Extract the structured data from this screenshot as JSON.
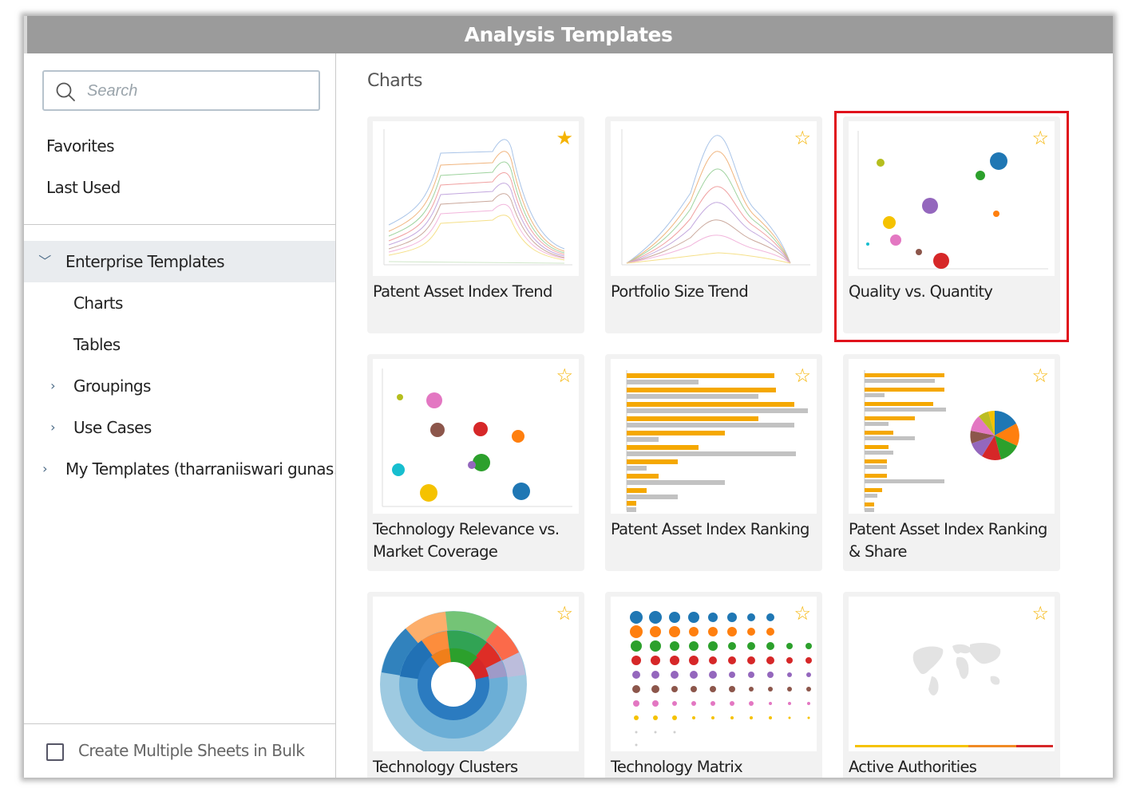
{
  "window": {
    "title": "Analysis Templates"
  },
  "sidebar": {
    "search": {
      "placeholder": "Search",
      "icon": "search-icon"
    },
    "links": [
      {
        "label": "Favorites"
      },
      {
        "label": "Last Used"
      }
    ],
    "tree": [
      {
        "label": "Enterprise Templates",
        "expanded": true,
        "selected": true
      },
      {
        "label": "Charts"
      },
      {
        "label": "Tables"
      },
      {
        "label": "Groupings",
        "expanded": false
      },
      {
        "label": "Use Cases",
        "expanded": false
      },
      {
        "label": "My Templates (tharraniiswari gunas...",
        "expanded": false
      }
    ],
    "bulk": {
      "label": "Create Multiple Sheets in Bulk",
      "checked": false
    }
  },
  "main": {
    "section_title": "Charts",
    "cards": [
      {
        "name": "Patent Asset Index Trend",
        "favorite": true
      },
      {
        "name": "Portfolio Size Trend",
        "favorite": false
      },
      {
        "name": "Quality vs. Quantity",
        "favorite": false,
        "highlighted": true
      },
      {
        "name": "Technology Relevance vs. Market Coverage",
        "favorite": false
      },
      {
        "name": "Patent Asset Index Ranking",
        "favorite": false
      },
      {
        "name": "Patent Asset Index Ranking & Share",
        "favorite": false
      },
      {
        "name": "Technology Clusters",
        "favorite": false
      },
      {
        "name": "Technology Matrix",
        "favorite": false
      },
      {
        "name": "Active Authorities",
        "favorite": false
      }
    ]
  },
  "colors": {
    "accent_star": "#f5b301",
    "highlight": "#e0121c",
    "titlebar": "#9b9b9b"
  }
}
